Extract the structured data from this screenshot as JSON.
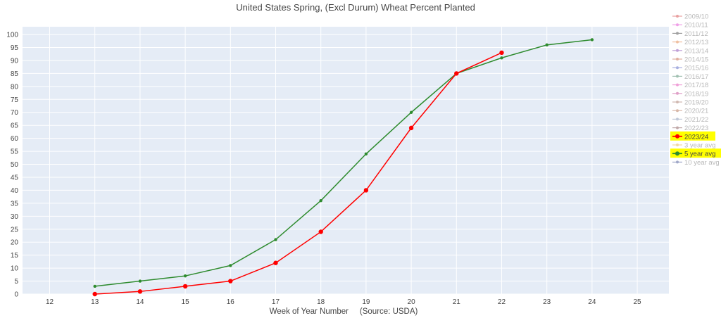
{
  "chart_data": {
    "type": "line",
    "title": "United States Spring, (Excl Durum) Wheat Percent Planted",
    "xlabel": "Week of Year Number     (Source: USDA)",
    "ylabel": "",
    "xlim": [
      11.4,
      25.7
    ],
    "ylim": [
      0,
      103
    ],
    "x_ticks": [
      12,
      13,
      14,
      15,
      16,
      17,
      18,
      19,
      20,
      21,
      22,
      23,
      24,
      25
    ],
    "y_ticks": [
      0,
      5,
      10,
      15,
      20,
      25,
      30,
      35,
      40,
      45,
      50,
      55,
      60,
      65,
      70,
      75,
      80,
      85,
      90,
      95,
      100
    ],
    "grid": true,
    "legend_position": "right",
    "series": [
      {
        "name": "2023/24",
        "color": "#ff0000",
        "x": [
          13,
          14,
          15,
          16,
          17,
          18,
          19,
          20,
          21,
          22
        ],
        "values": [
          0,
          1,
          3,
          5,
          12,
          24,
          40,
          64,
          85,
          93
        ]
      },
      {
        "name": "5 year avg",
        "color": "#2e8b2e",
        "x": [
          13,
          14,
          15,
          16,
          17,
          18,
          19,
          20,
          21,
          22,
          23,
          24
        ],
        "values": [
          3,
          5,
          7,
          11,
          21,
          36,
          54,
          70,
          85,
          91,
          96,
          98
        ]
      }
    ],
    "legend": [
      {
        "name": "2009/10",
        "color": "#e8a0a0",
        "highlight": false
      },
      {
        "name": "2010/11",
        "color": "#f0a0e8",
        "highlight": false
      },
      {
        "name": "2011/12",
        "color": "#a0a0a0",
        "highlight": false
      },
      {
        "name": "2012/13",
        "color": "#f0c0a0",
        "highlight": false
      },
      {
        "name": "2013/14",
        "color": "#c0a0d8",
        "highlight": false
      },
      {
        "name": "2014/15",
        "color": "#e0b0a0",
        "highlight": false
      },
      {
        "name": "2015/16",
        "color": "#a8b0e0",
        "highlight": false
      },
      {
        "name": "2016/17",
        "color": "#a0c0b0",
        "highlight": false
      },
      {
        "name": "2017/18",
        "color": "#f0a0d8",
        "highlight": false
      },
      {
        "name": "2018/19",
        "color": "#e0a0c8",
        "highlight": false
      },
      {
        "name": "2019/20",
        "color": "#d0b8b0",
        "highlight": false
      },
      {
        "name": "2020/21",
        "color": "#d8b8a8",
        "highlight": false
      },
      {
        "name": "2021/22",
        "color": "#c0c8d8",
        "highlight": false
      },
      {
        "name": "2022/23",
        "color": "#c0a8a8",
        "highlight": false
      },
      {
        "name": "2023/24",
        "color": "#ff0000",
        "highlight": true
      },
      {
        "name": "3 year avg",
        "color": "#f0d8a0",
        "highlight": false
      },
      {
        "name": "5 year avg",
        "color": "#2e8b2e",
        "highlight": true
      },
      {
        "name": "10 year avg",
        "color": "#a0a8c8",
        "highlight": false
      }
    ],
    "colors": {
      "plot_bg": "#e5ecf6",
      "grid": "#ffffff",
      "highlight_bg": "#ffff00",
      "inactive_text": "#b8b8b8",
      "active_text": "#444444"
    }
  }
}
